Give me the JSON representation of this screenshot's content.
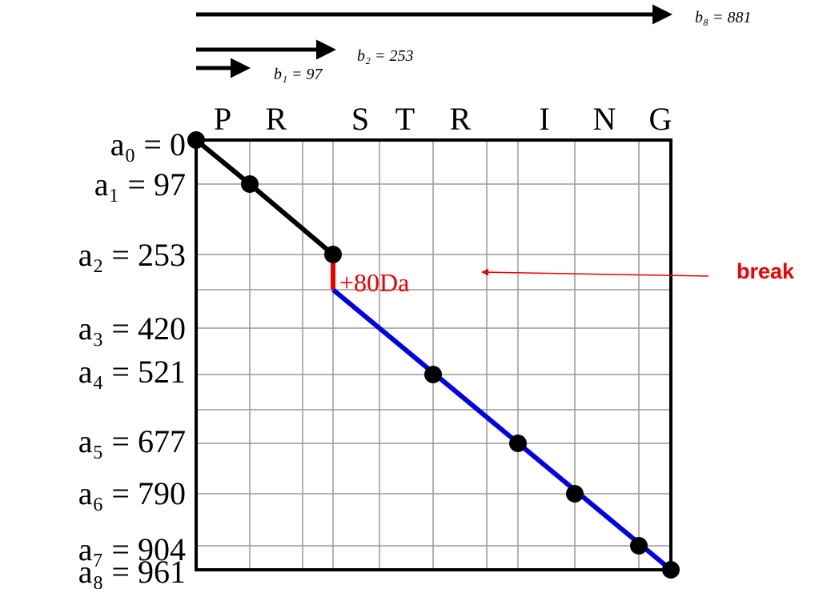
{
  "top_arrows": [
    "b₈ = 881",
    "b₂ = 253",
    "b₁ = 97"
  ],
  "residues": [
    "P",
    "R",
    "S",
    "T",
    "R",
    "I",
    "N",
    "G"
  ],
  "prefix_masses": [
    "a₀ = 0",
    "a₁ = 97",
    "a₂ = 253",
    "a₃ = 420",
    "a₄ = 521",
    "a₅ = 677",
    "a₆ = 790",
    "a₇ = 904",
    "a₈ = 961"
  ],
  "modification": "+80Da",
  "callout": "break"
}
